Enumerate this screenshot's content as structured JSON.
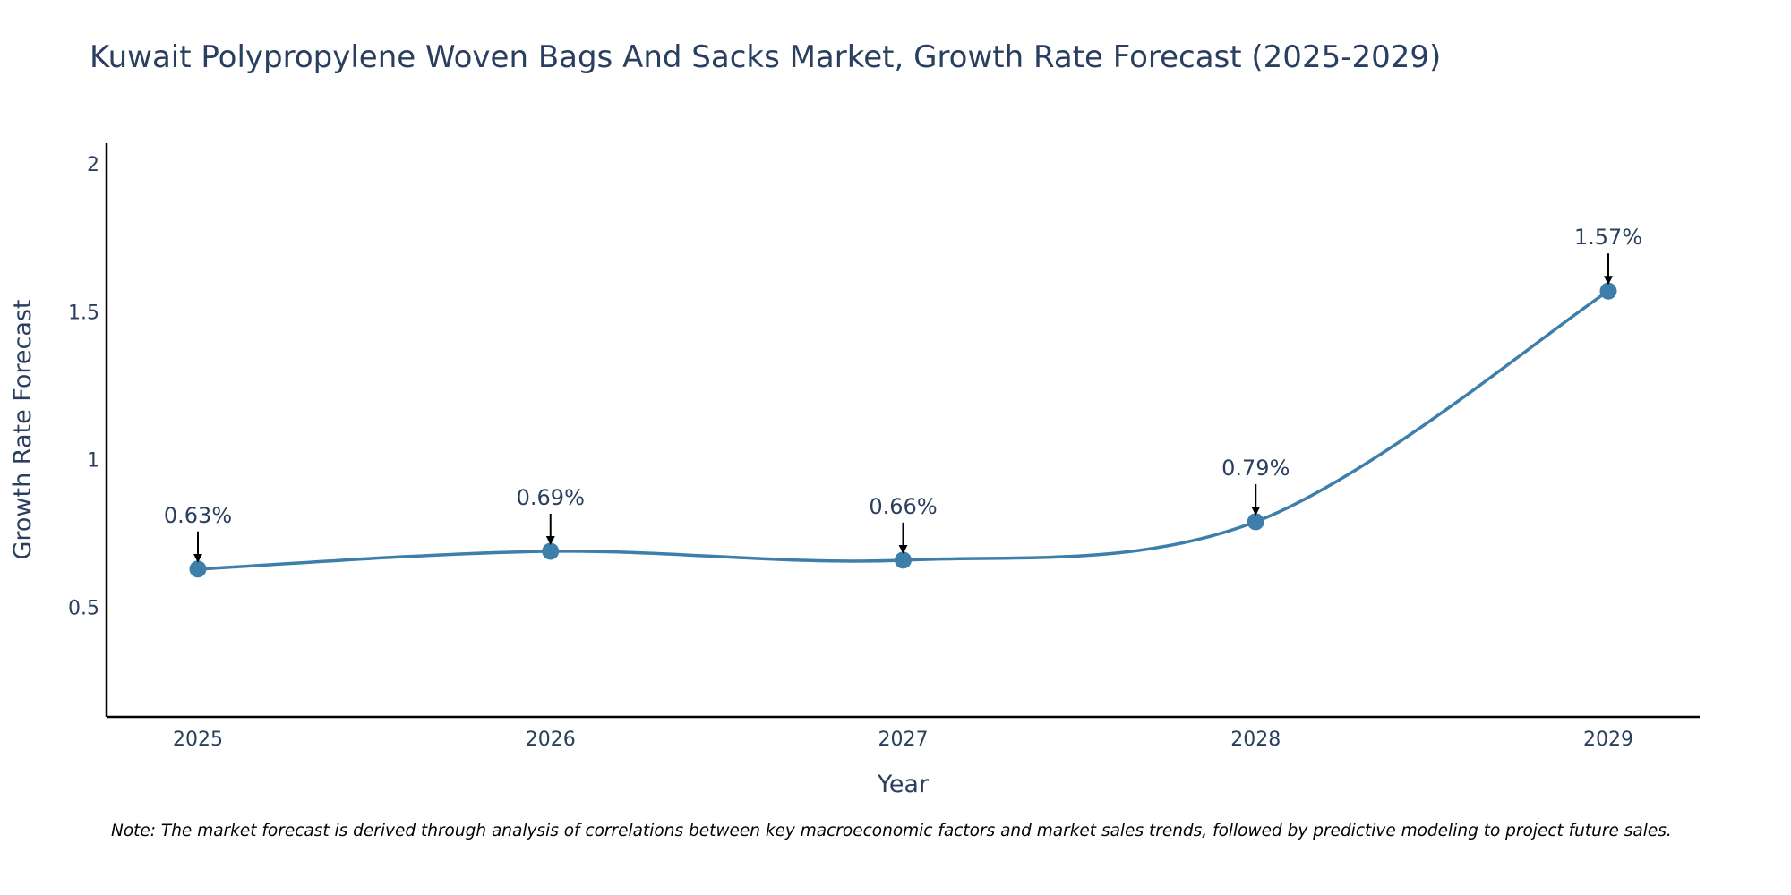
{
  "chart_data": {
    "type": "line",
    "title": "Kuwait Polypropylene Woven Bags And Sacks Market, Growth Rate Forecast (2025-2029)",
    "xlabel": "Year",
    "ylabel": "Growth Rate Forecast",
    "categories": [
      "2025",
      "2026",
      "2027",
      "2028",
      "2029"
    ],
    "values": [
      0.63,
      0.69,
      0.66,
      0.79,
      1.57
    ],
    "data_labels": [
      "0.63%",
      "0.69%",
      "0.66%",
      "0.79%",
      "1.57%"
    ],
    "yticks": [
      0.5,
      1,
      1.5,
      2
    ],
    "ytick_labels": [
      "0.5",
      "1",
      "1.5",
      "2"
    ],
    "ylim": [
      0.13,
      2.07
    ],
    "line_color": "#3d7eaa",
    "grid": false,
    "legend": "none"
  },
  "note": "Note: The market forecast is derived through analysis of correlations between key macroeconomic factors and market sales trends, followed by predictive modeling to project future sales."
}
